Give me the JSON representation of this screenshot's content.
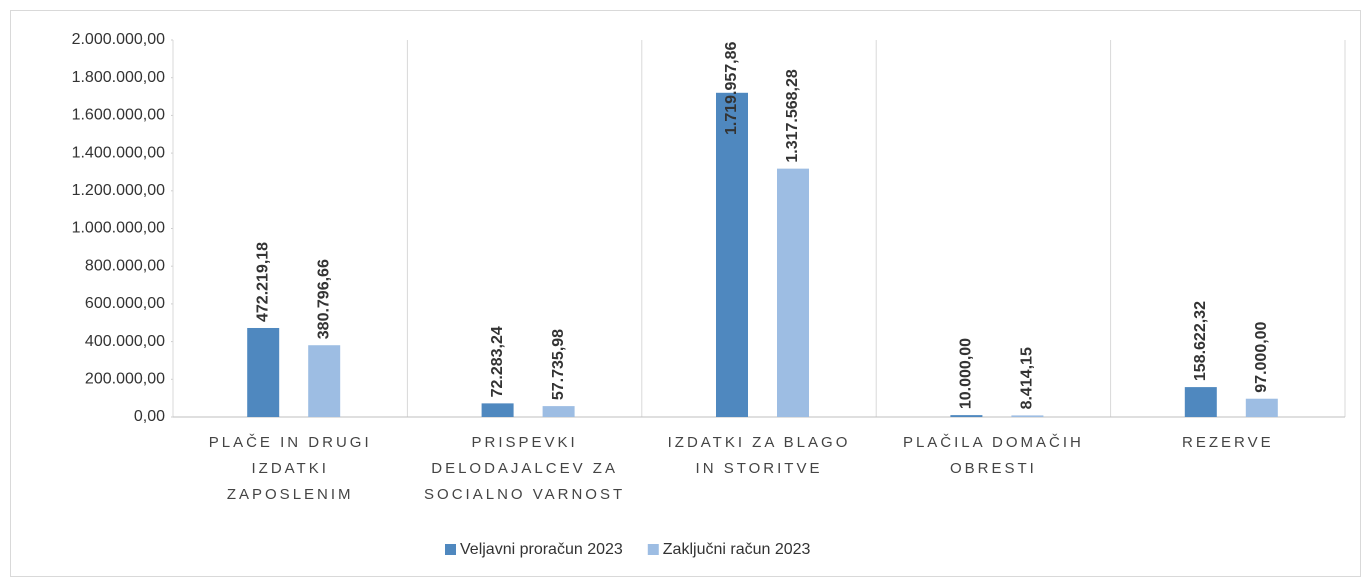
{
  "chart_data": {
    "type": "bar",
    "categories": [
      "PLAČE IN DRUGI IZDATKI ZAPOSLENIM",
      "PRISPEVKI DELODAJALCEV ZA SOCIALNO VARNOST",
      "IZDATKI ZA BLAGO IN STORITVE",
      "PLAČILA DOMAČIH OBRESTI",
      "REZERVE"
    ],
    "series": [
      {
        "name": "Veljavni proračun 2023",
        "color": "#4f88bf",
        "values": [
          472219.18,
          72283.24,
          1719957.86,
          10000,
          158622.32
        ],
        "value_labels": [
          "472.219,18",
          "72.283,24",
          "1.719.957,86",
          "10.000,00",
          "158.622,32"
        ]
      },
      {
        "name": "Zaključni račun 2023",
        "color": "#9dbde3",
        "values": [
          380796.66,
          57735.98,
          1317568.28,
          8414.15,
          97000
        ],
        "value_labels": [
          "380.796,66",
          "57.735,98",
          "1.317.568,28",
          "8.414,15",
          "97.000,00"
        ]
      }
    ],
    "ylim": [
      0,
      2000000
    ],
    "yticks": [
      {
        "value": 0,
        "label": "0,00"
      },
      {
        "value": 200000,
        "label": "200.000,00"
      },
      {
        "value": 400000,
        "label": "400.000,00"
      },
      {
        "value": 600000,
        "label": "600.000,00"
      },
      {
        "value": 800000,
        "label": "800.000,00"
      },
      {
        "value": 1000000,
        "label": "1.000.000,00"
      },
      {
        "value": 1200000,
        "label": "1.200.000,00"
      },
      {
        "value": 1400000,
        "label": "1.400.000,00"
      },
      {
        "value": 1600000,
        "label": "1.600.000,00"
      },
      {
        "value": 1800000,
        "label": "1.800.000,00"
      },
      {
        "value": 2000000,
        "label": "2.000.000,00"
      }
    ],
    "legend": "bottom"
  }
}
